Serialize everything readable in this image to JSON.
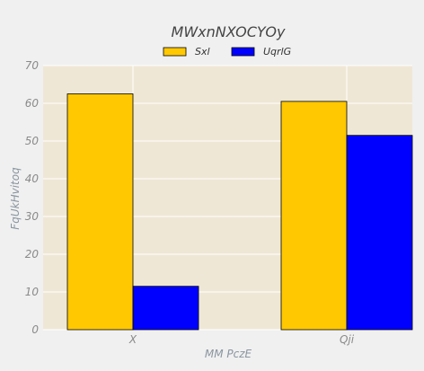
{
  "chart_data": {
    "type": "bar",
    "title": "MWxnNXOCYOy",
    "xlabel": "MM  PczE",
    "ylabel": "FqUkHvitoq",
    "categories": [
      "X",
      "Qji"
    ],
    "series": [
      {
        "name": "Sxl",
        "values": [
          62.5,
          60.5
        ],
        "color": "#ffc800"
      },
      {
        "name": "UqrlG",
        "values": [
          11.5,
          51.5
        ],
        "color": "#0000ff"
      }
    ],
    "ylim": [
      0,
      70
    ],
    "yticks": [
      0,
      10,
      20,
      30,
      40,
      50,
      60,
      70
    ],
    "grid": true,
    "legend_position": "top-center",
    "plot_background": "#efe7d6",
    "bar_edge_color": "#000000"
  }
}
